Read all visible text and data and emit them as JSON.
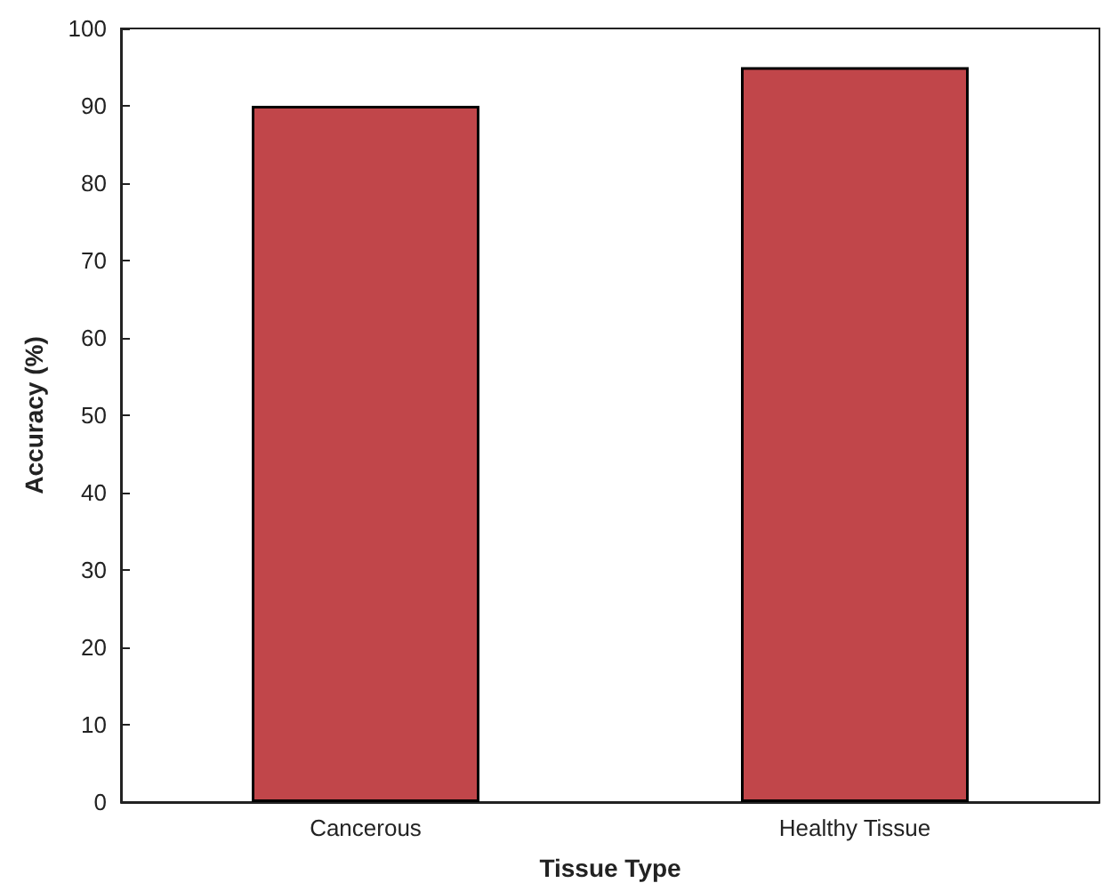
{
  "chart_data": {
    "type": "bar",
    "categories": [
      "Cancerous",
      "Healthy Tissue"
    ],
    "values": [
      90,
      95
    ],
    "color": "#c1464a",
    "xlabel": "Tissue Type",
    "ylabel": "Accuracy (%)",
    "ylim": [
      0,
      100
    ],
    "yticks": [
      0,
      10,
      20,
      30,
      40,
      50,
      60,
      70,
      80,
      90,
      100
    ]
  }
}
